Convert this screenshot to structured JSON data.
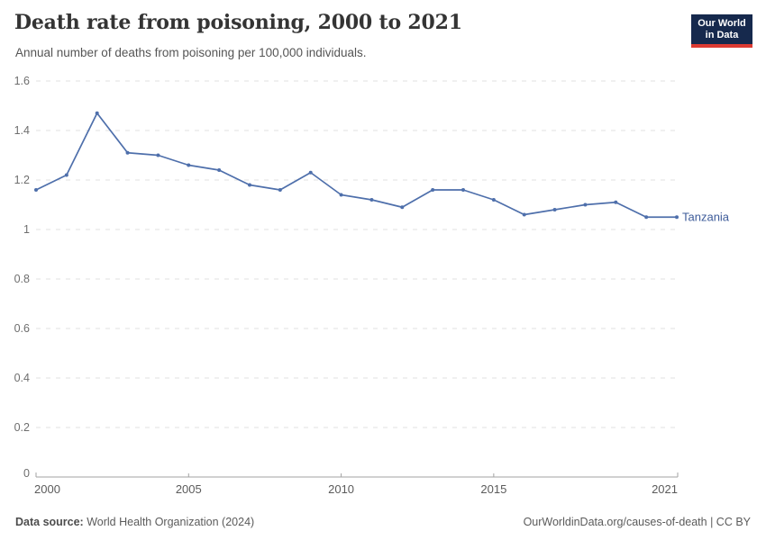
{
  "header": {
    "logo": {
      "line1": "Our World",
      "line2": "in Data"
    }
  },
  "footer": {
    "source_label": "Data source:",
    "source_text": "World Health Organization (2024)",
    "credit": "OurWorldinData.org/causes-of-death | CC BY"
  },
  "colors": {
    "logo_navy": "#16294d",
    "logo_red": "#dc3a32",
    "gridline": "#e0e0e0",
    "axis": "#a3a3a3",
    "ytick_text": "#6e6e6e",
    "xtick_text": "#5b5b5b"
  },
  "chart_data": {
    "type": "line",
    "title": "Death rate from poisoning, 2000 to 2021",
    "subtitle": "Annual number of deaths from poisoning per 100,000 individuals.",
    "x": [
      2000,
      2001,
      2002,
      2003,
      2004,
      2005,
      2006,
      2007,
      2008,
      2009,
      2010,
      2011,
      2012,
      2013,
      2014,
      2015,
      2016,
      2017,
      2018,
      2019,
      2020,
      2021
    ],
    "series": [
      {
        "name": "Tanzania",
        "color": "#4e6fab",
        "label_color": "#3e5c9a",
        "values": [
          1.16,
          1.22,
          1.47,
          1.31,
          1.3,
          1.26,
          1.24,
          1.18,
          1.16,
          1.23,
          1.14,
          1.12,
          1.09,
          1.16,
          1.16,
          1.12,
          1.06,
          1.08,
          1.1,
          1.11,
          1.05,
          1.05
        ]
      }
    ],
    "xlim": [
      2000,
      2021
    ],
    "ylim": [
      0,
      1.6
    ],
    "xticks": [
      2000,
      2005,
      2010,
      2015,
      2021
    ],
    "yticks": [
      0,
      0.2,
      0.4,
      0.6,
      0.8,
      1,
      1.2,
      1.4,
      1.6
    ],
    "grid": "horizontal-dashed",
    "legend_position": "end-of-line"
  }
}
